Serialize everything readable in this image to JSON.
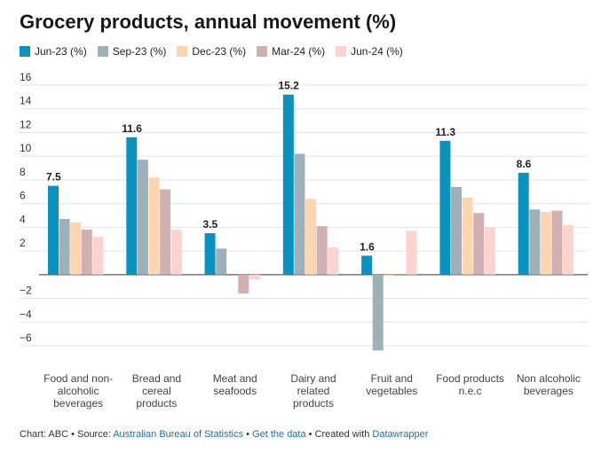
{
  "title": "Grocery products, annual movement (%)",
  "chart_data": {
    "type": "bar",
    "title": "Grocery products, annual movement (%)",
    "xlabel": "",
    "ylabel": "",
    "ylim": [
      -7,
      16.5
    ],
    "yticks": [
      16,
      14,
      12,
      10,
      8,
      6,
      4,
      2,
      -2,
      -4,
      -6
    ],
    "ytick_labels": [
      "16",
      "14",
      "12",
      "10",
      "8",
      "6",
      "4",
      "2",
      "−2",
      "−4",
      "−6"
    ],
    "grid": true,
    "legend_position": "top-left",
    "categories": [
      [
        "Food and non-",
        "alcoholic",
        "beverages"
      ],
      [
        "Bread and",
        "cereal",
        "products"
      ],
      [
        "Meat and",
        "seafoods"
      ],
      [
        "Dairy and",
        "related",
        "products"
      ],
      [
        "Fruit and",
        "vegetables"
      ],
      [
        "Food products",
        "n.e.c"
      ],
      [
        "Non alcoholic",
        "beverages"
      ]
    ],
    "series": [
      {
        "name": "Jun-23 (%)",
        "color": "#0b93c0",
        "values": [
          7.5,
          11.6,
          3.5,
          15.2,
          1.6,
          11.3,
          8.6
        ]
      },
      {
        "name": "Sep-23 (%)",
        "color": "#9fb1b8",
        "values": [
          4.7,
          9.7,
          2.2,
          10.2,
          -6.4,
          7.4,
          5.5
        ]
      },
      {
        "name": "Dec-23 (%)",
        "color": "#fed5b1",
        "values": [
          4.4,
          8.2,
          0.0,
          6.4,
          -0.1,
          6.5,
          5.3
        ]
      },
      {
        "name": "Mar-24 (%)",
        "color": "#d1b0b2",
        "values": [
          3.8,
          7.2,
          -1.6,
          4.1,
          -0.1,
          5.2,
          5.4
        ]
      },
      {
        "name": "Jun-24 (%)",
        "color": "#fdd3cf",
        "values": [
          3.2,
          3.8,
          -0.4,
          2.3,
          3.7,
          4.0,
          4.2
        ]
      }
    ],
    "data_labels": [
      "7.5",
      "11.6",
      "3.5",
      "15.2",
      "1.6",
      "11.3",
      "8.6"
    ]
  },
  "footer": {
    "prefix": "Chart: ABC • Source: ",
    "source_link": "Australian Bureau of Statistics",
    "sep1": " • ",
    "data_link": "Get the data",
    "sep2": " • Created with ",
    "tool_link": "Datawrapper"
  }
}
